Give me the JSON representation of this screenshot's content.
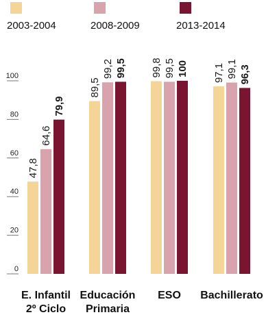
{
  "chart_data": {
    "type": "bar",
    "title": "",
    "xlabel": "",
    "ylabel": "",
    "ylim": [
      0,
      100
    ],
    "yticks": [
      "0",
      "20",
      "40",
      "60",
      "80",
      "100"
    ],
    "categories": [
      [
        "E. Infantil",
        "2º Ciclo"
      ],
      [
        "Educación",
        "Primaria"
      ],
      [
        "ESO"
      ],
      [
        "Bachillerato"
      ]
    ],
    "series": [
      {
        "name": "2003-2004",
        "color": "#f5d597",
        "values": [
          47.8,
          89.5,
          99.8,
          97.1
        ],
        "labels": [
          "47,8",
          "89,5",
          "99,8",
          "97,1"
        ],
        "bold": false
      },
      {
        "name": "2008-2009",
        "color": "#d9a3ae",
        "values": [
          64.6,
          99.2,
          99.5,
          99.1
        ],
        "labels": [
          "64,6",
          "99,2",
          "99,5",
          "99,1"
        ],
        "bold": false
      },
      {
        "name": "2013-2014",
        "color": "#7a1531",
        "values": [
          79.9,
          99.5,
          100,
          96.3
        ],
        "labels": [
          "79,9",
          "99,5",
          "100",
          "96,3"
        ],
        "bold": true
      }
    ],
    "legend_position": "top",
    "grid": false
  }
}
